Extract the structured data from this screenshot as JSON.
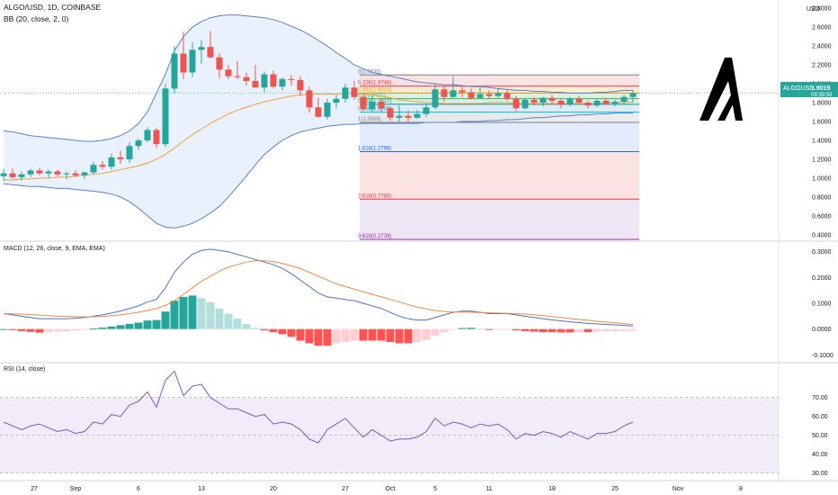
{
  "header": {
    "symbol_line": "ALGO/USD, 1D, COINBASE",
    "bb_line": "BB (20, close, 2, 0)",
    "currency": "USD"
  },
  "macd_label": "MACD (12, 26, close, 9, EMA, EMA)",
  "rsi_label": "RSI (14, close)",
  "price_tag": {
    "symbol": "ALGOUSD",
    "price": "1.9019",
    "countdown": "09:39:59"
  },
  "colors": {
    "up": "#26a69a",
    "down": "#ef5350",
    "bb": "#5b7fd6",
    "bb_fill": "#e3eefb",
    "basis": "#f39c3d",
    "macd": "#4a72c9",
    "signal": "#f5883d",
    "rsi": "#7e57c2"
  },
  "chart_data": [
    {
      "type": "candlestick",
      "name": "price",
      "x_tick_labels": [
        "27",
        "Sep",
        "6",
        "13",
        "20",
        "27",
        "Oct",
        "5",
        "11",
        "18",
        "25",
        "Nov",
        "8"
      ],
      "y_tick_labels": [
        "2.8000",
        "2.6000",
        "2.4000",
        "2.2000",
        "2.0000",
        "1.8000",
        "1.6000",
        "1.4000",
        "1.2000",
        "1.0000",
        "0.8000",
        "0.6000",
        "0.4000"
      ],
      "ylim": [
        0.35,
        2.85
      ],
      "candles": [
        [
          1.02,
          1.1,
          0.97,
          1.05
        ],
        [
          1.05,
          1.1,
          0.99,
          1.01
        ],
        [
          1.01,
          1.07,
          0.97,
          1.04
        ],
        [
          1.04,
          1.1,
          1.01,
          1.08
        ],
        [
          1.08,
          1.11,
          1.03,
          1.05
        ],
        [
          1.05,
          1.09,
          1.0,
          1.07
        ],
        [
          1.07,
          1.09,
          1.02,
          1.04
        ],
        [
          1.04,
          1.07,
          0.99,
          1.05
        ],
        [
          1.05,
          1.08,
          1.01,
          1.03
        ],
        [
          1.03,
          1.07,
          0.99,
          1.06
        ],
        [
          1.06,
          1.17,
          1.04,
          1.14
        ],
        [
          1.14,
          1.18,
          1.09,
          1.12
        ],
        [
          1.12,
          1.26,
          1.09,
          1.22
        ],
        [
          1.22,
          1.29,
          1.15,
          1.2
        ],
        [
          1.2,
          1.38,
          1.16,
          1.34
        ],
        [
          1.34,
          1.42,
          1.3,
          1.4
        ],
        [
          1.4,
          1.54,
          1.38,
          1.51
        ],
        [
          1.51,
          1.53,
          1.32,
          1.36
        ],
        [
          1.36,
          2.0,
          1.33,
          1.95
        ],
        [
          1.95,
          2.4,
          1.9,
          2.32
        ],
        [
          2.32,
          2.55,
          2.05,
          2.12
        ],
        [
          2.12,
          2.44,
          2.07,
          2.36
        ],
        [
          2.36,
          2.46,
          2.21,
          2.39
        ],
        [
          2.39,
          2.56,
          2.27,
          2.28
        ],
        [
          2.28,
          2.32,
          2.06,
          2.15
        ],
        [
          2.15,
          2.2,
          2.05,
          2.08
        ],
        [
          2.08,
          2.24,
          2.05,
          2.07
        ],
        [
          2.07,
          2.12,
          1.98,
          2.03
        ],
        [
          2.03,
          2.2,
          1.96,
          1.96
        ],
        [
          1.96,
          2.13,
          1.91,
          2.1
        ],
        [
          2.1,
          2.14,
          1.95,
          1.97
        ],
        [
          1.97,
          2.07,
          1.93,
          2.05
        ],
        [
          2.05,
          2.09,
          1.98,
          2.04
        ],
        [
          2.04,
          2.08,
          1.87,
          1.93
        ],
        [
          1.93,
          1.97,
          1.69,
          1.75
        ],
        [
          1.75,
          1.85,
          1.64,
          1.65
        ],
        [
          1.65,
          1.84,
          1.62,
          1.8
        ],
        [
          1.8,
          1.88,
          1.74,
          1.84
        ],
        [
          1.84,
          2.0,
          1.8,
          1.96
        ],
        [
          1.96,
          2.03,
          1.83,
          1.86
        ],
        [
          1.86,
          1.88,
          1.71,
          1.73
        ],
        [
          1.73,
          1.87,
          1.7,
          1.81
        ],
        [
          1.81,
          1.84,
          1.7,
          1.74
        ],
        [
          1.74,
          1.76,
          1.61,
          1.64
        ],
        [
          1.64,
          1.77,
          1.6,
          1.66
        ],
        [
          1.66,
          1.72,
          1.6,
          1.64
        ],
        [
          1.64,
          1.72,
          1.63,
          1.68
        ],
        [
          1.68,
          1.78,
          1.65,
          1.75
        ],
        [
          1.75,
          2.01,
          1.73,
          1.94
        ],
        [
          1.94,
          1.98,
          1.81,
          1.86
        ],
        [
          1.86,
          2.08,
          1.85,
          1.93
        ],
        [
          1.93,
          1.97,
          1.86,
          1.91
        ],
        [
          1.91,
          1.95,
          1.83,
          1.85
        ],
        [
          1.85,
          1.96,
          1.84,
          1.89
        ],
        [
          1.89,
          1.93,
          1.84,
          1.87
        ],
        [
          1.87,
          1.95,
          1.85,
          1.9
        ],
        [
          1.9,
          1.94,
          1.82,
          1.84
        ],
        [
          1.84,
          1.87,
          1.71,
          1.74
        ],
        [
          1.74,
          1.85,
          1.73,
          1.83
        ],
        [
          1.83,
          1.86,
          1.77,
          1.8
        ],
        [
          1.8,
          1.86,
          1.76,
          1.85
        ],
        [
          1.85,
          1.88,
          1.79,
          1.82
        ],
        [
          1.82,
          1.84,
          1.74,
          1.78
        ],
        [
          1.78,
          1.86,
          1.76,
          1.84
        ],
        [
          1.84,
          1.87,
          1.78,
          1.8
        ],
        [
          1.8,
          1.82,
          1.74,
          1.77
        ],
        [
          1.77,
          1.84,
          1.75,
          1.82
        ],
        [
          1.82,
          1.85,
          1.77,
          1.79
        ],
        [
          1.79,
          1.83,
          1.76,
          1.81
        ],
        [
          1.81,
          1.88,
          1.78,
          1.86
        ],
        [
          1.86,
          1.93,
          1.8,
          1.9
        ]
      ],
      "bb_upper": [
        1.5,
        1.49,
        1.47,
        1.45,
        1.44,
        1.43,
        1.42,
        1.41,
        1.4,
        1.39,
        1.39,
        1.4,
        1.42,
        1.45,
        1.5,
        1.58,
        1.7,
        1.9,
        2.1,
        2.35,
        2.5,
        2.6,
        2.66,
        2.7,
        2.72,
        2.73,
        2.73,
        2.72,
        2.71,
        2.7,
        2.68,
        2.65,
        2.61,
        2.57,
        2.52,
        2.46,
        2.4,
        2.33,
        2.27,
        2.2,
        2.16,
        2.12,
        2.1,
        2.08,
        2.06,
        2.04,
        2.02,
        2.01,
        2.0,
        1.99,
        1.99,
        1.98,
        1.97,
        1.97,
        1.96,
        1.95,
        1.94,
        1.93,
        1.93,
        1.92,
        1.92,
        1.91,
        1.91,
        1.9,
        1.9,
        1.9,
        1.91,
        1.91,
        1.92,
        1.93,
        1.93
      ],
      "bb_basis": [
        0.98,
        0.98,
        0.99,
        0.99,
        1.0,
        1.0,
        1.01,
        1.01,
        1.02,
        1.03,
        1.04,
        1.05,
        1.07,
        1.09,
        1.11,
        1.13,
        1.16,
        1.2,
        1.25,
        1.32,
        1.39,
        1.46,
        1.52,
        1.58,
        1.63,
        1.68,
        1.72,
        1.75,
        1.78,
        1.81,
        1.83,
        1.85,
        1.87,
        1.88,
        1.89,
        1.89,
        1.89,
        1.89,
        1.9,
        1.9,
        1.89,
        1.88,
        1.87,
        1.85,
        1.83,
        1.82,
        1.81,
        1.8,
        1.8,
        1.79,
        1.79,
        1.79,
        1.79,
        1.79,
        1.8,
        1.8,
        1.8,
        1.79,
        1.79,
        1.79,
        1.79,
        1.79,
        1.79,
        1.79,
        1.79,
        1.79,
        1.79,
        1.8,
        1.8,
        1.8,
        1.81
      ],
      "bb_lower": [
        0.94,
        0.93,
        0.92,
        0.91,
        0.91,
        0.9,
        0.89,
        0.89,
        0.88,
        0.87,
        0.86,
        0.85,
        0.83,
        0.8,
        0.75,
        0.68,
        0.6,
        0.52,
        0.48,
        0.47,
        0.49,
        0.52,
        0.57,
        0.63,
        0.7,
        0.8,
        0.91,
        1.02,
        1.14,
        1.25,
        1.33,
        1.4,
        1.45,
        1.49,
        1.51,
        1.53,
        1.55,
        1.56,
        1.57,
        1.57,
        1.58,
        1.58,
        1.58,
        1.58,
        1.58,
        1.58,
        1.58,
        1.59,
        1.59,
        1.59,
        1.59,
        1.6,
        1.6,
        1.6,
        1.61,
        1.61,
        1.62,
        1.62,
        1.63,
        1.64,
        1.64,
        1.65,
        1.66,
        1.66,
        1.67,
        1.67,
        1.68,
        1.68,
        1.69,
        1.69,
        1.69
      ],
      "fib": {
        "start_bar": 40,
        "end_bar": 71,
        "levels": [
          {
            "label": "0(2.0935)",
            "value": 2.0935,
            "color": "#787b86",
            "fill": "#fbd9d9"
          },
          {
            "label": "0.236(1.9748)",
            "value": 1.9748,
            "color": "#f23645",
            "fill": "#f7e7c9"
          },
          {
            "label": "0.382(1.9014)",
            "value": 1.9014,
            "color": "#ff9800",
            "fill": "#d9efd9"
          },
          {
            "label": "0.5(1.8421)",
            "value": 1.8421,
            "color": "#4caf50",
            "fill": "#cfeee6"
          },
          {
            "label": "0.618(1.7827)",
            "value": 1.7827,
            "color": "#089981",
            "fill": "#d6e8f7"
          },
          {
            "label": "0.786(1.6985)",
            "value": 1.6985,
            "color": "#00bcd4",
            "fill": "#e6e6e6"
          },
          {
            "label": "1(1.5908)",
            "value": 1.5908,
            "color": "#787b86",
            "fill": "#d9e6fb"
          },
          {
            "label": "1.618(1.2798)",
            "value": 1.2798,
            "color": "#2962ff",
            "fill": "#fbd9d9"
          },
          {
            "label": "2.618(0.7768)",
            "value": 0.7768,
            "color": "#f23645",
            "fill": "#e9ddf2"
          },
          {
            "label": "3.618(0.2739)",
            "value": 0.2739,
            "color": "#9c27b0",
            "fill": "none"
          }
        ]
      }
    },
    {
      "type": "bar+line",
      "name": "MACD",
      "y_tick_labels": [
        "0.3000",
        "0.2000",
        "0.1000",
        "0.0000",
        "-0.1000"
      ],
      "ylim": [
        -0.12,
        0.32
      ],
      "macd": [
        0.06,
        0.055,
        0.05,
        0.045,
        0.04,
        0.04,
        0.04,
        0.04,
        0.042,
        0.045,
        0.05,
        0.055,
        0.062,
        0.07,
        0.08,
        0.09,
        0.105,
        0.115,
        0.16,
        0.22,
        0.26,
        0.29,
        0.305,
        0.31,
        0.305,
        0.3,
        0.29,
        0.28,
        0.27,
        0.26,
        0.25,
        0.235,
        0.215,
        0.19,
        0.165,
        0.14,
        0.125,
        0.12,
        0.115,
        0.11,
        0.1,
        0.09,
        0.08,
        0.065,
        0.05,
        0.04,
        0.035,
        0.035,
        0.045,
        0.055,
        0.065,
        0.07,
        0.07,
        0.065,
        0.06,
        0.06,
        0.06,
        0.055,
        0.05,
        0.045,
        0.04,
        0.036,
        0.032,
        0.028,
        0.025,
        0.022,
        0.02,
        0.018,
        0.016,
        0.014,
        0.012
      ],
      "signal": [
        0.06,
        0.059,
        0.058,
        0.056,
        0.054,
        0.052,
        0.05,
        0.049,
        0.048,
        0.047,
        0.048,
        0.049,
        0.052,
        0.055,
        0.06,
        0.065,
        0.072,
        0.08,
        0.092,
        0.11,
        0.135,
        0.16,
        0.185,
        0.205,
        0.225,
        0.24,
        0.25,
        0.26,
        0.265,
        0.265,
        0.262,
        0.255,
        0.245,
        0.235,
        0.22,
        0.205,
        0.19,
        0.175,
        0.165,
        0.155,
        0.145,
        0.135,
        0.125,
        0.115,
        0.105,
        0.095,
        0.085,
        0.078,
        0.072,
        0.068,
        0.066,
        0.066,
        0.065,
        0.064,
        0.063,
        0.062,
        0.061,
        0.06,
        0.058,
        0.055,
        0.052,
        0.048,
        0.045,
        0.041,
        0.037,
        0.034,
        0.03,
        0.027,
        0.024,
        0.021,
        0.018
      ],
      "histogram": [
        0.0,
        -0.004,
        -0.008,
        -0.011,
        -0.014,
        -0.012,
        -0.01,
        -0.009,
        -0.006,
        -0.002,
        0.002,
        0.006,
        0.01,
        0.015,
        0.02,
        0.025,
        0.033,
        0.035,
        0.068,
        0.11,
        0.125,
        0.13,
        0.12,
        0.105,
        0.08,
        0.06,
        0.04,
        0.02,
        0.005,
        -0.005,
        -0.012,
        -0.02,
        -0.03,
        -0.045,
        -0.055,
        -0.065,
        -0.065,
        -0.055,
        -0.05,
        -0.045,
        -0.045,
        -0.045,
        -0.045,
        -0.05,
        -0.055,
        -0.055,
        -0.05,
        -0.043,
        -0.027,
        -0.013,
        -0.001,
        0.004,
        0.005,
        0.001,
        -0.003,
        -0.002,
        -0.001,
        -0.005,
        -0.008,
        -0.01,
        -0.012,
        -0.012,
        -0.013,
        -0.013,
        -0.012,
        -0.012,
        -0.01,
        -0.009,
        -0.008,
        -0.007,
        -0.006
      ]
    },
    {
      "type": "line",
      "name": "RSI",
      "y_tick_labels": [
        "70.00",
        "60.00",
        "50.00",
        "40.00",
        "30.00"
      ],
      "ylim": [
        27,
        87
      ],
      "band": [
        30,
        70
      ],
      "values": [
        57,
        55,
        53,
        55,
        56,
        54,
        52,
        53,
        51,
        52,
        57,
        56,
        61,
        60,
        66,
        68,
        73,
        65,
        79,
        84,
        71,
        76,
        77,
        70,
        67,
        64,
        64,
        62,
        60,
        61,
        56,
        57,
        56,
        53,
        48,
        46,
        53,
        56,
        59,
        54,
        49,
        53,
        50,
        47,
        48,
        48,
        49,
        52,
        59,
        55,
        57,
        56,
        54,
        56,
        55,
        56,
        53,
        48,
        51,
        50,
        52,
        51,
        49,
        52,
        50,
        48,
        51,
        51,
        52,
        55,
        57
      ]
    }
  ]
}
